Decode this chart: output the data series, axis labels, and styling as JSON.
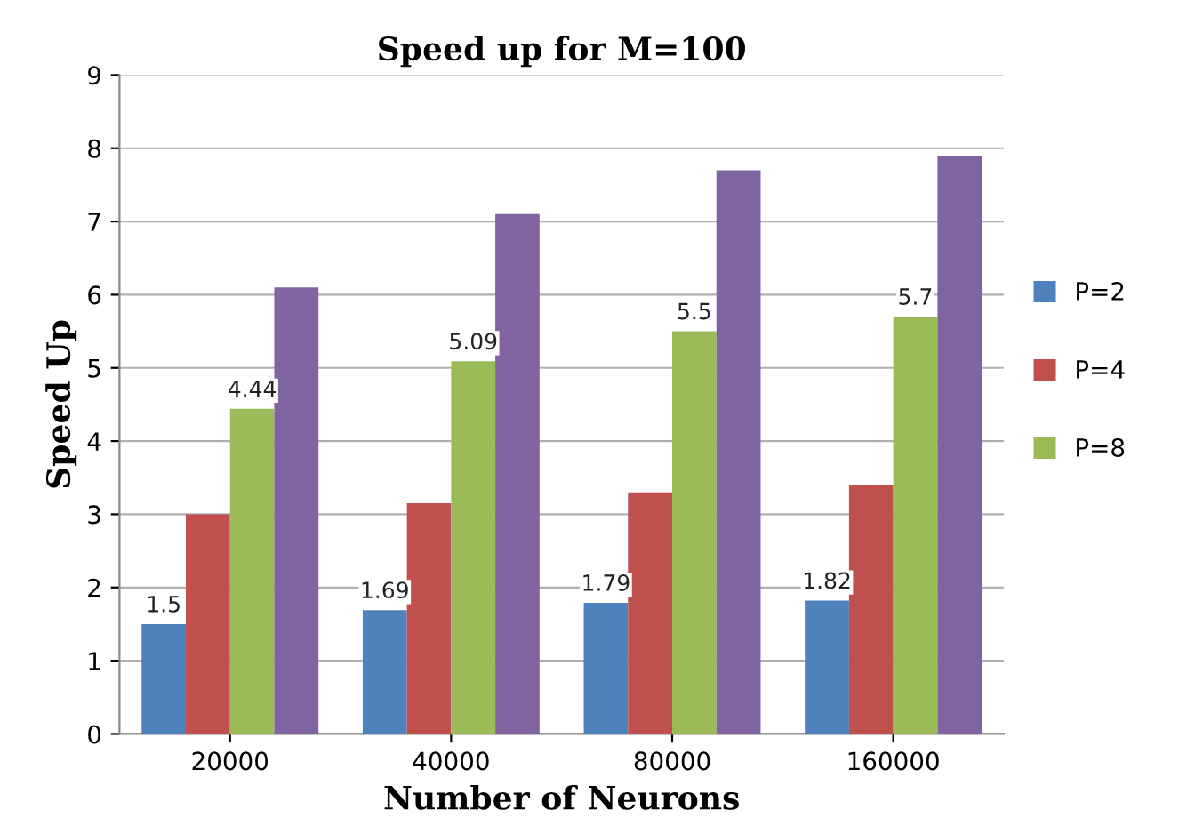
{
  "chart_data": {
    "type": "bar",
    "title": "Speed up for M=100",
    "xlabel": "Number of Neurons",
    "ylabel": "Speed Up",
    "categories": [
      "20000",
      "40000",
      "80000",
      "160000"
    ],
    "series": [
      {
        "name": "P=2",
        "color": "#4f81bd",
        "values": [
          1.5,
          1.69,
          1.79,
          1.82
        ],
        "value_labels": [
          "1.5",
          "1.69",
          "1.79",
          "1.82"
        ]
      },
      {
        "name": "P=4",
        "color": "#c0504d",
        "values": [
          3.0,
          3.15,
          3.3,
          3.4
        ]
      },
      {
        "name": "P=8",
        "color": "#9bbb59",
        "values": [
          4.44,
          5.09,
          5.5,
          5.7
        ],
        "value_labels": [
          "4.44",
          "5.09",
          "5.5",
          "5.7"
        ]
      },
      {
        "color": "#8064a2",
        "values": [
          6.1,
          7.1,
          7.7,
          7.9
        ]
      }
    ],
    "ylim": [
      0,
      9
    ],
    "yticks": [
      0,
      1,
      2,
      3,
      4,
      5,
      6,
      7,
      8,
      9
    ],
    "grid": "y",
    "legend": "right"
  }
}
